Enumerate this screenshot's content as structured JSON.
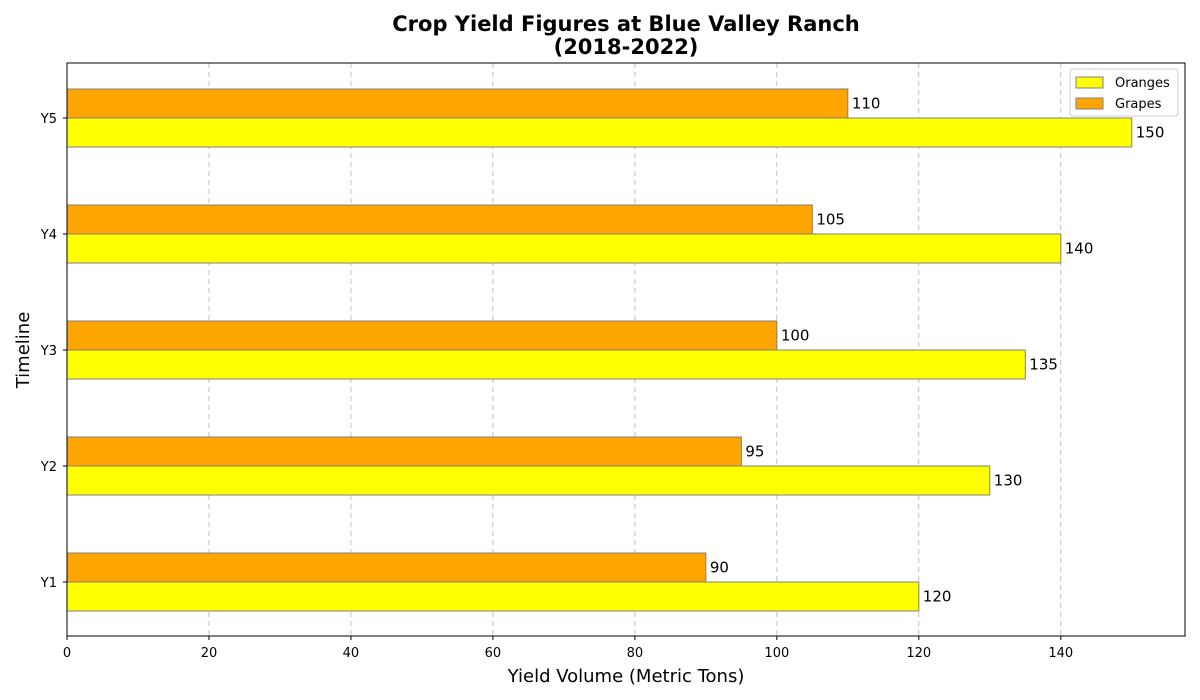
{
  "chart_data": {
    "type": "bar",
    "orientation": "horizontal",
    "title": "Crop Yield Figures at Blue Valley Ranch",
    "subtitle": "(2018-2022)",
    "xlabel": "Yield Volume (Metric Tons)",
    "ylabel": "Timeline",
    "categories": [
      "Y1",
      "Y2",
      "Y3",
      "Y4",
      "Y5"
    ],
    "series": [
      {
        "name": "Oranges",
        "color": "#ffff00",
        "values": [
          120,
          130,
          135,
          140,
          150
        ]
      },
      {
        "name": "Grapes",
        "color": "#ffa500",
        "values": [
          90,
          95,
          100,
          105,
          110
        ]
      }
    ],
    "xlim": [
      0,
      157.5
    ],
    "xticks": [
      0,
      20,
      40,
      60,
      80,
      100,
      120,
      140
    ],
    "grid": "x-dashed",
    "legend": "top-right"
  }
}
